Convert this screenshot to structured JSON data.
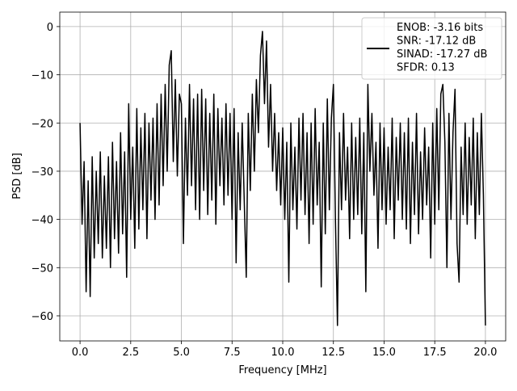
{
  "chart_data": {
    "type": "line",
    "xlabel": "Frequency [MHz]",
    "ylabel": "PSD [dB]",
    "x": [
      0.0,
      0.1,
      0.2,
      0.3,
      0.4,
      0.5,
      0.6,
      0.7,
      0.8,
      0.9,
      1.0,
      1.1,
      1.2,
      1.3,
      1.4,
      1.5,
      1.6,
      1.7,
      1.8,
      1.9,
      2.0,
      2.1,
      2.2,
      2.3,
      2.4,
      2.5,
      2.6,
      2.7,
      2.8,
      2.9,
      3.0,
      3.1,
      3.2,
      3.3,
      3.4,
      3.5,
      3.6,
      3.7,
      3.8,
      3.9,
      4.0,
      4.1,
      4.2,
      4.3,
      4.4,
      4.5,
      4.6,
      4.7,
      4.8,
      4.9,
      5.0,
      5.1,
      5.2,
      5.3,
      5.4,
      5.5,
      5.6,
      5.7,
      5.8,
      5.9,
      6.0,
      6.1,
      6.2,
      6.3,
      6.4,
      6.5,
      6.6,
      6.7,
      6.8,
      6.9,
      7.0,
      7.1,
      7.2,
      7.3,
      7.4,
      7.5,
      7.6,
      7.7,
      7.8,
      7.9,
      8.0,
      8.1,
      8.2,
      8.3,
      8.4,
      8.5,
      8.6,
      8.7,
      8.8,
      8.9,
      9.0,
      9.1,
      9.2,
      9.3,
      9.4,
      9.5,
      9.6,
      9.7,
      9.8,
      9.9,
      10.0,
      10.1,
      10.2,
      10.3,
      10.4,
      10.5,
      10.6,
      10.7,
      10.8,
      10.9,
      11.0,
      11.1,
      11.2,
      11.3,
      11.4,
      11.5,
      11.6,
      11.7,
      11.8,
      11.9,
      12.0,
      12.1,
      12.2,
      12.3,
      12.4,
      12.5,
      12.6,
      12.7,
      12.8,
      12.9,
      13.0,
      13.1,
      13.2,
      13.3,
      13.4,
      13.5,
      13.6,
      13.7,
      13.8,
      13.9,
      14.0,
      14.1,
      14.2,
      14.3,
      14.4,
      14.5,
      14.6,
      14.7,
      14.8,
      14.9,
      15.0,
      15.1,
      15.2,
      15.3,
      15.4,
      15.5,
      15.6,
      15.7,
      15.8,
      15.9,
      16.0,
      16.1,
      16.2,
      16.3,
      16.4,
      16.5,
      16.6,
      16.7,
      16.8,
      16.9,
      17.0,
      17.1,
      17.2,
      17.3,
      17.4,
      17.5,
      17.6,
      17.7,
      17.8,
      17.9,
      18.0,
      18.1,
      18.2,
      18.3,
      18.4,
      18.5,
      18.6,
      18.7,
      18.8,
      18.9,
      19.0,
      19.1,
      19.2,
      19.3,
      19.4,
      19.5,
      19.6,
      19.7,
      19.8,
      19.9,
      20.0
    ],
    "series": [
      {
        "name": "ENOB: -3.16 bits\nSNR: -17.12 dB\nSINAD: -17.27 dB\nSFDR: 0.13",
        "color": "#000000",
        "values": [
          -20,
          -41,
          -28,
          -55,
          -32,
          -56,
          -27,
          -48,
          -30,
          -45,
          -26,
          -48,
          -31,
          -46,
          -27,
          -50,
          -24,
          -44,
          -28,
          -47,
          -22,
          -43,
          -26,
          -52,
          -16,
          -40,
          -25,
          -46,
          -17,
          -42,
          -21,
          -38,
          -18,
          -44,
          -20,
          -36,
          -19,
          -40,
          -16,
          -37,
          -14,
          -33,
          -12,
          -30,
          -8,
          -5,
          -28,
          -11,
          -31,
          -14,
          -16,
          -45,
          -19,
          -35,
          -12,
          -33,
          -15,
          -38,
          -14,
          -40,
          -13,
          -34,
          -15,
          -39,
          -18,
          -36,
          -14,
          -41,
          -17,
          -33,
          -19,
          -37,
          -16,
          -35,
          -18,
          -40,
          -17,
          -49,
          -22,
          -38,
          -20,
          -36,
          -52,
          -18,
          -34,
          -14,
          -30,
          -11,
          -22,
          -6,
          -1,
          -16,
          -3,
          -25,
          -12,
          -30,
          -18,
          -34,
          -22,
          -37,
          -21,
          -40,
          -24,
          -53,
          -20,
          -38,
          -25,
          -42,
          -19,
          -36,
          -18,
          -39,
          -22,
          -45,
          -20,
          -41,
          -17,
          -37,
          -24,
          -54,
          -20,
          -43,
          -15,
          -38,
          -19,
          -12,
          -40,
          -62,
          -22,
          -38,
          -18,
          -36,
          -25,
          -44,
          -20,
          -40,
          -23,
          -39,
          -19,
          -43,
          -22,
          -55,
          -12,
          -30,
          -18,
          -35,
          -24,
          -46,
          -20,
          -38,
          -21,
          -41,
          -25,
          -38,
          -19,
          -44,
          -23,
          -36,
          -20,
          -40,
          -22,
          -42,
          -19,
          -45,
          -24,
          -39,
          -18,
          -43,
          -26,
          -40,
          -21,
          -37,
          -25,
          -48,
          -20,
          -41,
          -17,
          -38,
          -14,
          -12,
          -24,
          -50,
          -18,
          -40,
          -22,
          -13,
          -45,
          -53,
          -25,
          -39,
          -20,
          -41,
          -23,
          -37,
          -19,
          -44,
          -22,
          -39,
          -18,
          -35,
          -62
        ]
      }
    ],
    "xlim": [
      -1.0,
      21.0
    ],
    "ylim": [
      -65.2,
      3.0
    ],
    "xticks": [
      {
        "value": 0,
        "label": "0.0"
      },
      2.5,
      {
        "value": 5,
        "label": "5.0"
      },
      7.5,
      {
        "value": 10,
        "label": "10.0"
      },
      12.5,
      {
        "value": 15,
        "label": "15.0"
      },
      17.5,
      {
        "value": 20,
        "label": "20.0"
      }
    ],
    "yticks": [
      0,
      {
        "value": -10,
        "label": "−10"
      },
      {
        "value": -20,
        "label": "−20"
      },
      {
        "value": -30,
        "label": "−30"
      },
      {
        "value": -40,
        "label": "−40"
      },
      {
        "value": -50,
        "label": "−50"
      },
      {
        "value": -60,
        "label": "−60"
      }
    ],
    "grid": true,
    "legend": "upper right"
  }
}
